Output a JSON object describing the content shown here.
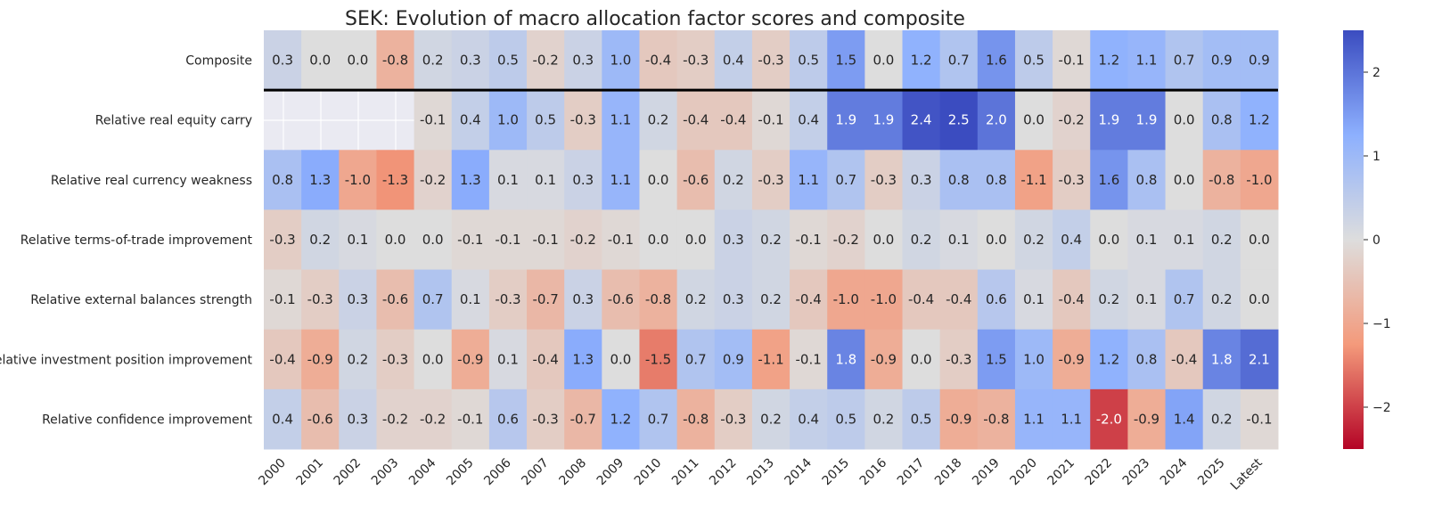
{
  "chart_data": {
    "type": "heatmap",
    "title": "SEK: Evolution of macro allocation factor scores and composite",
    "xlabel": "",
    "ylabel": "",
    "x_categories": [
      "2000",
      "2001",
      "2002",
      "2003",
      "2004",
      "2005",
      "2006",
      "2007",
      "2008",
      "2009",
      "2010",
      "2011",
      "2012",
      "2013",
      "2014",
      "2015",
      "2016",
      "2017",
      "2018",
      "2019",
      "2020",
      "2021",
      "2022",
      "2023",
      "2024",
      "2025",
      "Latest"
    ],
    "y_categories": [
      "Composite",
      "Relative real equity carry",
      "Relative real currency weakness",
      "Relative terms-of-trade improvement",
      "Relative external balances strength",
      "Relative investment position improvement",
      "Relative confidence improvement"
    ],
    "values": [
      [
        0.3,
        0.0,
        0.0,
        -0.8,
        0.2,
        0.3,
        0.5,
        -0.2,
        0.3,
        1.0,
        -0.4,
        -0.3,
        0.4,
        -0.3,
        0.5,
        1.5,
        -0.0,
        1.2,
        0.7,
        1.6,
        0.5,
        -0.1,
        1.2,
        1.1,
        0.7,
        0.9,
        0.9
      ],
      [
        null,
        null,
        null,
        null,
        -0.1,
        0.4,
        1.0,
        0.5,
        -0.3,
        1.1,
        0.2,
        -0.4,
        -0.4,
        -0.1,
        0.4,
        1.9,
        1.9,
        2.4,
        2.5,
        2.0,
        -0.0,
        -0.2,
        1.9,
        1.9,
        0.0,
        0.8,
        1.2
      ],
      [
        0.8,
        1.3,
        -1.0,
        -1.3,
        -0.2,
        1.3,
        0.1,
        0.1,
        0.3,
        1.1,
        0.0,
        -0.6,
        0.2,
        -0.3,
        1.1,
        0.7,
        -0.3,
        0.3,
        0.8,
        0.8,
        -1.1,
        -0.3,
        1.6,
        0.8,
        -0.0,
        -0.8,
        -1.0
      ],
      [
        -0.3,
        0.2,
        0.1,
        -0.0,
        -0.0,
        -0.1,
        -0.1,
        -0.1,
        -0.2,
        -0.1,
        0.0,
        0.0,
        0.3,
        0.2,
        -0.1,
        -0.2,
        -0.0,
        0.2,
        0.1,
        -0.0,
        0.2,
        0.4,
        0.0,
        0.1,
        0.1,
        0.2,
        0.0
      ],
      [
        -0.1,
        -0.3,
        0.3,
        -0.6,
        0.7,
        0.1,
        -0.3,
        -0.7,
        0.3,
        -0.6,
        -0.8,
        0.2,
        0.3,
        0.2,
        -0.4,
        -1.0,
        -1.0,
        -0.4,
        -0.4,
        0.6,
        0.1,
        -0.4,
        0.2,
        0.1,
        0.7,
        0.2,
        -0.0
      ],
      [
        -0.4,
        -0.9,
        0.2,
        -0.3,
        0.0,
        -0.9,
        0.1,
        -0.4,
        1.3,
        0.0,
        -1.5,
        0.7,
        0.9,
        -1.1,
        -0.1,
        1.8,
        -0.9,
        0.0,
        -0.3,
        1.5,
        1.0,
        -0.9,
        1.2,
        0.8,
        -0.4,
        1.8,
        2.1
      ],
      [
        0.4,
        -0.6,
        0.3,
        -0.2,
        -0.2,
        -0.1,
        0.6,
        -0.3,
        -0.7,
        1.2,
        0.7,
        -0.8,
        -0.3,
        0.2,
        0.4,
        0.5,
        0.2,
        0.5,
        -0.9,
        -0.8,
        1.1,
        1.1,
        -2.0,
        -0.9,
        1.4,
        0.2,
        -0.1
      ]
    ],
    "colormap": "coolwarm",
    "vmin": -2.5,
    "vmax": 2.5,
    "colorbar_ticks": [
      -2,
      -1,
      0,
      1,
      2
    ],
    "colorbar_tick_labels": [
      "−2",
      "−1",
      "0",
      "1",
      "2"
    ],
    "annotations": "cell values shown with one decimal",
    "separator_after_row": "Composite",
    "missing_color": "#eaeaf2"
  }
}
